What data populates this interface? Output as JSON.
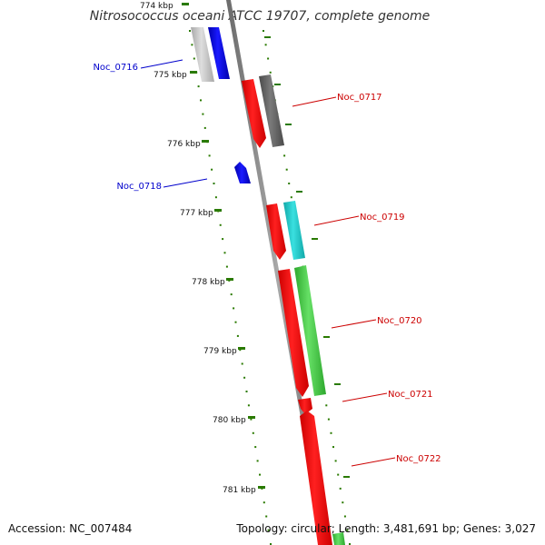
{
  "title": "Nitrosococcus oceani ATCC 19707, complete genome",
  "footer": {
    "accession": "Accession: NC_007484",
    "summary": "Topology: circular; Length: 3,481,691 bp; Genes: 3,027"
  },
  "colors": {
    "backbone": "#8a8a8a",
    "tick": "#2a7a00",
    "label_forward": "#0000cc",
    "label_reverse": "#cc0000",
    "feature_red": "#ff0000",
    "feature_blue": "#0000ff",
    "feature_gray_light": "#c8c8c8",
    "feature_gray_dark": "#666666",
    "feature_cyan": "#22cccc",
    "feature_green": "#44cc44"
  },
  "ticks": [
    {
      "label": "774 kbp"
    },
    {
      "label": "775 kbp"
    },
    {
      "label": "776 kbp"
    },
    {
      "label": "777 kbp"
    },
    {
      "label": "778 kbp"
    },
    {
      "label": "779 kbp"
    },
    {
      "label": "780 kbp"
    },
    {
      "label": "781 kbp"
    }
  ],
  "genes": [
    {
      "label": "Noc_0716",
      "strand": "forward"
    },
    {
      "label": "Noc_0717",
      "strand": "reverse"
    },
    {
      "label": "Noc_0718",
      "strand": "forward"
    },
    {
      "label": "Noc_0719",
      "strand": "reverse"
    },
    {
      "label": "Noc_0720",
      "strand": "reverse"
    },
    {
      "label": "Noc_0721",
      "strand": "reverse"
    },
    {
      "label": "Noc_0722",
      "strand": "reverse"
    }
  ]
}
